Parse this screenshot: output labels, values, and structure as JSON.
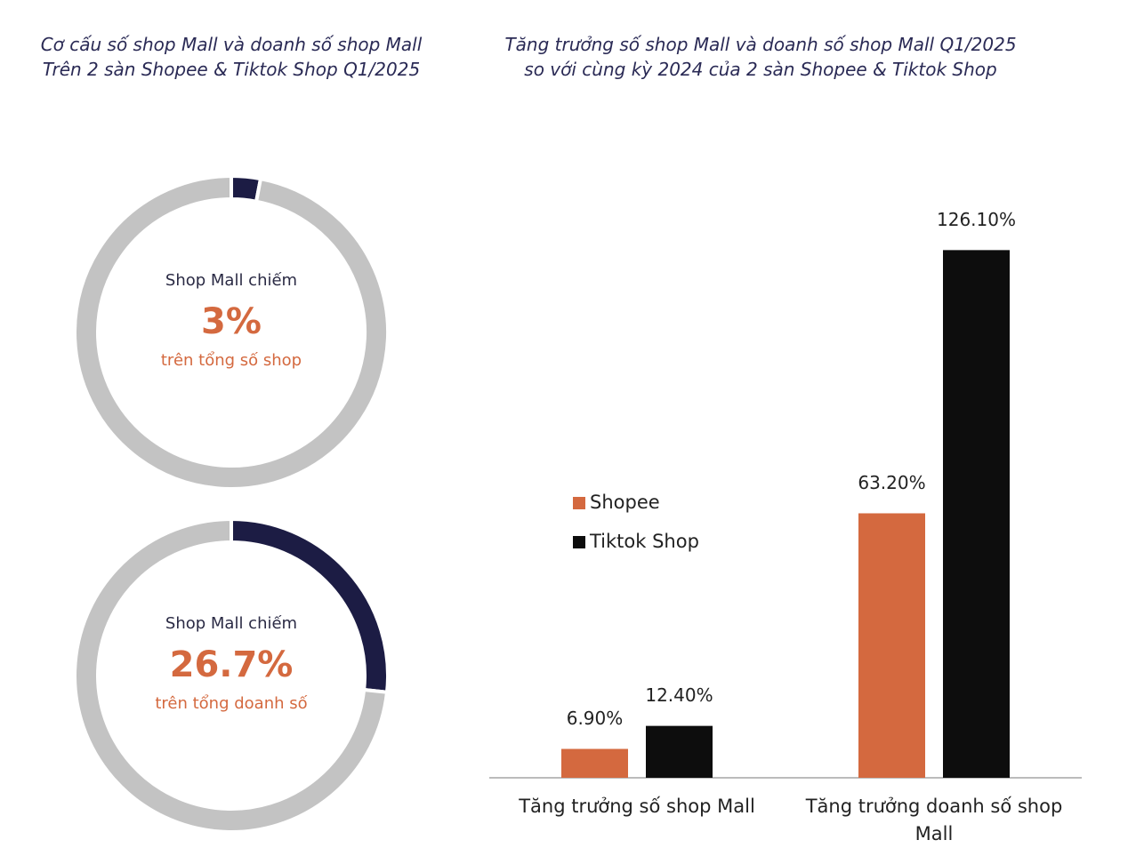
{
  "chart_data": [
    {
      "type": "donut",
      "title": "Cơ cấu số shop Mall và doanh số shop Mall\nTrên 2 sàn Shopee & Tiktok Shop Q1/2025",
      "categories": [
        null,
        null
      ],
      "values": [
        3,
        97
      ],
      "value_labels": [
        "3%",
        null
      ],
      "colors": [
        "#1c1c44",
        "#c3c3c3"
      ],
      "annotations": [
        "Shop Mall chiếm",
        "trên tổng số shop"
      ]
    },
    {
      "type": "donut",
      "categories": [
        null,
        null
      ],
      "values": [
        26.7,
        73.3
      ],
      "value_labels": [
        "26.7%",
        null
      ],
      "colors": [
        "#1c1c44",
        "#c3c3c3"
      ],
      "annotations": [
        "Shop Mall chiếm",
        "trên tổng doanh số"
      ]
    },
    {
      "type": "bar",
      "title": "Tăng trưởng số shop Mall và doanh số shop Mall Q1/2025\nso với cùng kỳ 2024 của 2 sàn Shopee & Tiktok Shop",
      "categories": [
        "Tăng trưởng số shop Mall",
        "Tăng trưởng doanh số shop Mall"
      ],
      "series": [
        {
          "name": "Shopee",
          "color": "#d4693f",
          "values": [
            6.9,
            63.2
          ],
          "value_labels": [
            "6.90%",
            "63.20%"
          ]
        },
        {
          "name": "Tiktok Shop",
          "color": "#0d0d0d",
          "values": [
            12.4,
            126.1
          ],
          "value_labels": [
            "12.40%",
            "126.10%"
          ]
        }
      ],
      "ylim": [
        0,
        130
      ],
      "legend": "left"
    }
  ]
}
